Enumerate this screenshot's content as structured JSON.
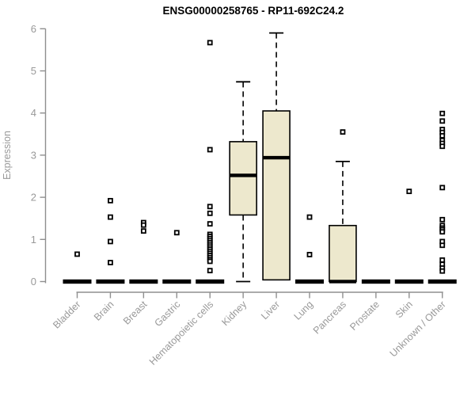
{
  "chart_data": {
    "type": "boxplot",
    "title": "ENSG00000258765 - RP11-692C24.2",
    "ylabel": "Expression",
    "xlabel": "",
    "ylim": [
      0,
      6
    ],
    "yticks": [
      0,
      1,
      2,
      3,
      4,
      5,
      6
    ],
    "grid": false,
    "legend": "none",
    "colors": {
      "box_fill": "#ede8cd",
      "box_border": "#000000",
      "median": "#000000",
      "whisker": "#000000",
      "outlier": "#000000",
      "axis_line": "#8f8f8f",
      "tick_label": "#999999",
      "title": "#000000"
    },
    "categories": [
      "Bladder",
      "Brain",
      "Breast",
      "Gastric",
      "Hematopoietic cells",
      "Kidney",
      "Liver",
      "Lung",
      "Pancreas",
      "Prostate",
      "Skin",
      "Unknown / Other"
    ],
    "series": [
      {
        "category": "Bladder",
        "min": 0,
        "q1": 0,
        "median": 0,
        "q3": 0,
        "max": 0,
        "outliers": [
          0.65
        ]
      },
      {
        "category": "Brain",
        "min": 0,
        "q1": 0,
        "median": 0,
        "q3": 0,
        "max": 0,
        "outliers": [
          1.92,
          1.53,
          0.95,
          0.45
        ]
      },
      {
        "category": "Breast",
        "min": 0,
        "q1": 0,
        "median": 0,
        "q3": 0,
        "max": 0,
        "outliers": [
          1.4,
          1.34,
          1.2
        ]
      },
      {
        "category": "Gastric",
        "min": 0,
        "q1": 0,
        "median": 0,
        "q3": 0,
        "max": 0,
        "outliers": [
          1.16
        ]
      },
      {
        "category": "Hematopoietic cells",
        "min": 0,
        "q1": 0,
        "median": 0,
        "q3": 0,
        "max": 0,
        "outliers": [
          5.67,
          3.13,
          1.78,
          1.62,
          1.37,
          1.12,
          1.07,
          1.02,
          0.97,
          0.92,
          0.87,
          0.82,
          0.77,
          0.72,
          0.67,
          0.62,
          0.57,
          0.52,
          0.48,
          0.26
        ]
      },
      {
        "category": "Kidney",
        "min": 0,
        "q1": 1.58,
        "median": 2.52,
        "q3": 3.32,
        "max": 4.74,
        "outliers": []
      },
      {
        "category": "Liver",
        "min": 0.04,
        "q1": 0.04,
        "median": 2.94,
        "q3": 4.05,
        "max": 5.9,
        "outliers": []
      },
      {
        "category": "Lung",
        "min": 0,
        "q1": 0,
        "median": 0,
        "q3": 0,
        "max": 0,
        "outliers": [
          1.53,
          0.64
        ]
      },
      {
        "category": "Pancreas",
        "min": 0,
        "q1": 0,
        "median": 0,
        "q3": 1.33,
        "max": 2.85,
        "outliers": [
          3.55
        ]
      },
      {
        "category": "Prostate",
        "min": 0,
        "q1": 0,
        "median": 0,
        "q3": 0,
        "max": 0,
        "outliers": []
      },
      {
        "category": "Skin",
        "min": 0,
        "q1": 0,
        "median": 0,
        "q3": 0,
        "max": 0,
        "outliers": [
          2.14
        ]
      },
      {
        "category": "Unknown / Other",
        "min": 0,
        "q1": 0,
        "median": 0,
        "q3": 0,
        "max": 0,
        "outliers": [
          3.99,
          3.81,
          3.61,
          3.54,
          3.46,
          3.35,
          3.28,
          3.21,
          2.23,
          1.47,
          1.33,
          1.27,
          1.23,
          1.18,
          0.95,
          0.86,
          0.51,
          0.41,
          0.32,
          0.25
        ]
      }
    ]
  }
}
